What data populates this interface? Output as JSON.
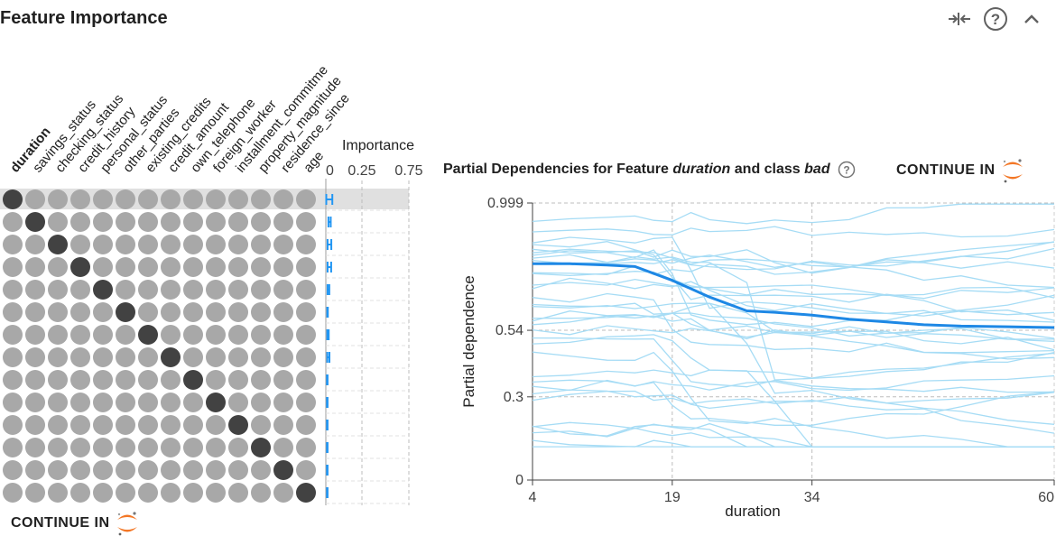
{
  "header": {
    "title": "Feature Importance",
    "icons": [
      "compress-icon",
      "help-icon",
      "chevron-up-icon"
    ]
  },
  "matrix": {
    "features": [
      "duration",
      "savings_status",
      "checking_status",
      "credit_history",
      "personal_status",
      "other_parties",
      "existing_credits",
      "credit_amount",
      "own_telephone",
      "foreign_worker",
      "installment_commitme",
      "property_magnitude",
      "residence_since",
      "age"
    ],
    "selected_feature": "duration",
    "dot_color_active": "#424242",
    "dot_color_inactive": "#a8a8a8",
    "highlight_color": "#e0e0e0"
  },
  "importance": {
    "header": "Importance",
    "ticks": [
      "0",
      "0.25",
      "0.75"
    ],
    "bar_color": "#2196f3",
    "values": [
      {
        "feature": "duration",
        "low": 0.003,
        "high": 0.045
      },
      {
        "feature": "savings_status",
        "low": 0.018,
        "high": 0.034
      },
      {
        "feature": "checking_status",
        "low": 0.012,
        "high": 0.038
      },
      {
        "feature": "credit_history",
        "low": 0.012,
        "high": 0.037
      },
      {
        "feature": "personal_status",
        "low": 0.012,
        "high": 0.024
      },
      {
        "feature": "other_parties",
        "low": 0.01,
        "high": 0.014
      },
      {
        "feature": "existing_credits",
        "low": 0.01,
        "high": 0.02
      },
      {
        "feature": "credit_amount",
        "low": 0.01,
        "high": 0.025
      },
      {
        "feature": "own_telephone",
        "low": 0.008,
        "high": 0.012
      },
      {
        "feature": "foreign_worker",
        "low": 0.008,
        "high": 0.012
      },
      {
        "feature": "installment_commitme",
        "low": 0.008,
        "high": 0.012
      },
      {
        "feature": "property_magnitude",
        "low": 0.008,
        "high": 0.012
      },
      {
        "feature": "residence_since",
        "low": 0.008,
        "high": 0.012
      },
      {
        "feature": "age",
        "low": 0.008,
        "high": 0.012
      }
    ]
  },
  "partial_dependence": {
    "title_prefix": "Partial Dependencies for Feature",
    "feature": "duration",
    "title_mid": "and class",
    "class_label": "bad"
  },
  "continue_label": "CONTINUE IN",
  "chart_data": {
    "type": "line",
    "title": "Partial Dependencies for Feature duration and class bad",
    "xlabel": "duration",
    "ylabel": "Partial dependence",
    "x_ticks": [
      "4",
      "19",
      "34",
      "60"
    ],
    "y_ticks": [
      "0",
      "0.3",
      "0.54",
      "0.999"
    ],
    "xlim": [
      4,
      60
    ],
    "ylim": [
      0,
      0.999
    ],
    "mean_color": "#1e88e5",
    "ice_color": "#a6dcf5",
    "series": [
      {
        "name": "average",
        "x": [
          4,
          8,
          12,
          15,
          19,
          23,
          27,
          30,
          34,
          38,
          42,
          46,
          50,
          55,
          60
        ],
        "values": [
          0.78,
          0.78,
          0.775,
          0.77,
          0.72,
          0.66,
          0.61,
          0.605,
          0.595,
          0.58,
          0.57,
          0.56,
          0.555,
          0.553,
          0.55
        ]
      }
    ]
  }
}
